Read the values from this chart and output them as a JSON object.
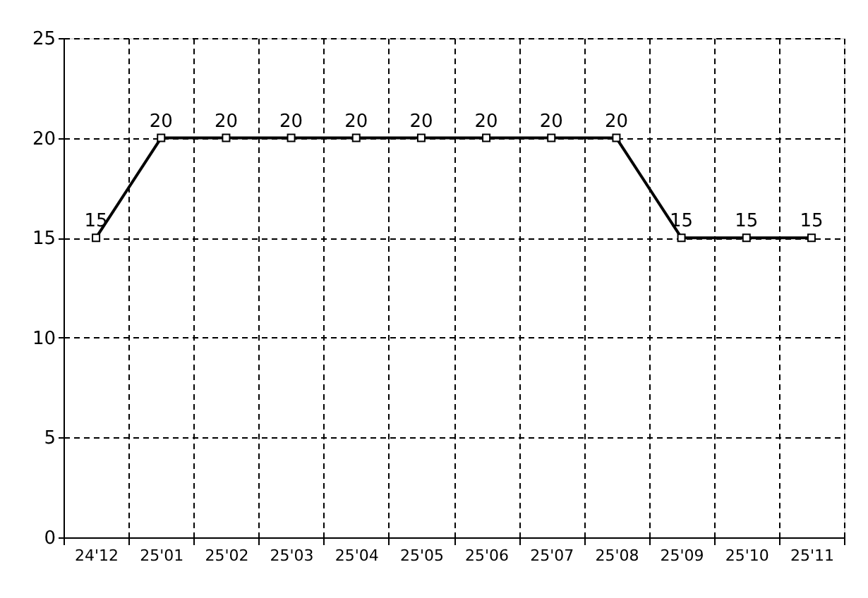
{
  "chart_data": {
    "type": "line",
    "categories": [
      "24'12",
      "25'01",
      "25'02",
      "25'03",
      "25'04",
      "25'05",
      "25'06",
      "25'07",
      "25'08",
      "25'09",
      "25'10",
      "25'11"
    ],
    "series": [
      {
        "color": "#000000",
        "values": [
          15,
          20,
          20,
          20,
          20,
          20,
          20,
          20,
          20,
          15,
          15,
          15
        ]
      }
    ],
    "ylim": [
      0,
      25
    ],
    "yticks": [
      0,
      5,
      10,
      15,
      20,
      25
    ],
    "grid": true,
    "marker": "square",
    "line_style": "solid",
    "data_labels": true
  }
}
